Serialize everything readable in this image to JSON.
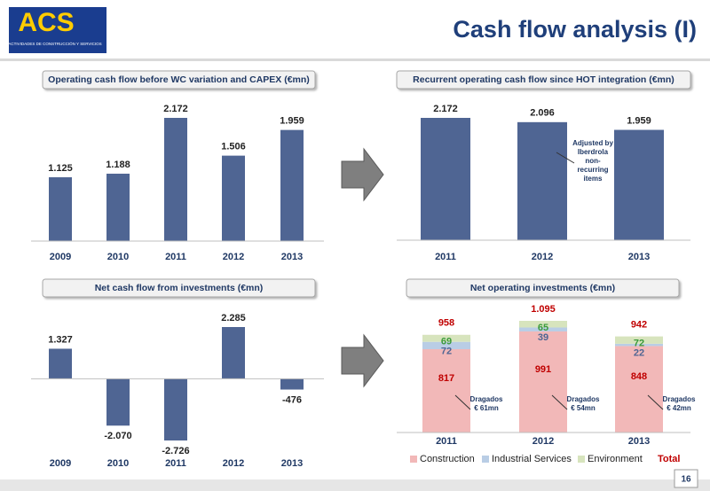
{
  "slide": {
    "title": "Cash flow analysis (I)",
    "logo": "ACS",
    "logo_subtitle": "ACTIVIDADES DE CONSTRUCCIÓN Y SERVICIOS",
    "page": 16
  },
  "chart_data": [
    {
      "type": "bar",
      "title": "Operating cash flow before WC variation and CAPEX (€mn)",
      "categories": [
        "2009",
        "2010",
        "2011",
        "2012",
        "2013"
      ],
      "values": [
        1125,
        1188,
        2172,
        1506,
        1959
      ],
      "value_labels": [
        "1.125",
        "1.188",
        "2.172",
        "1.506",
        "1.959"
      ],
      "color": "#4f6593"
    },
    {
      "type": "bar",
      "title": "Recurrent operating cash flow since HOT integration (€mn)",
      "categories": [
        "2011",
        "2012",
        "2013"
      ],
      "values": [
        2172,
        2096,
        1959
      ],
      "value_labels": [
        "2.172",
        "2.096",
        "1.959"
      ],
      "color": "#4f6593",
      "annotation": [
        "Adjusted by",
        "Iberdrola",
        "non-",
        "recurring",
        "items"
      ]
    },
    {
      "type": "bar",
      "title": "Net cash flow from investments (€mn)",
      "categories": [
        "2009",
        "2010",
        "2011",
        "2012",
        "2013"
      ],
      "values": [
        1327,
        -2070,
        -2726,
        2285,
        -476
      ],
      "value_labels": [
        "1.327",
        "-2.070",
        "-2.726",
        "2.285",
        "-476"
      ],
      "color": "#4f6593"
    },
    {
      "type": "stacked_bar",
      "title": "Net operating investments (€mn)",
      "categories": [
        "2011",
        "2012",
        "2013"
      ],
      "series": [
        {
          "name": "Construction",
          "color": "#f2b8b8",
          "label_color": "#c00000",
          "values": [
            817,
            991,
            848
          ]
        },
        {
          "name": "Industrial Services",
          "color": "#b9cde5",
          "label_color": "#4f6593",
          "values": [
            72,
            39,
            22
          ]
        },
        {
          "name": "Environment",
          "color": "#d7e4bd",
          "label_color": "#3a9a3a",
          "values": [
            69,
            65,
            72
          ]
        }
      ],
      "total": {
        "name": "Total",
        "color": "#c00000",
        "values": [
          958,
          1095,
          942
        ],
        "value_labels": [
          "958",
          "1.095",
          "942"
        ]
      },
      "annotations": [
        [
          "Dragados",
          "€ 61mn"
        ],
        [
          "Dragados",
          "€ 54mn"
        ],
        [
          "Dragados",
          "€ 42mn"
        ]
      ]
    }
  ]
}
